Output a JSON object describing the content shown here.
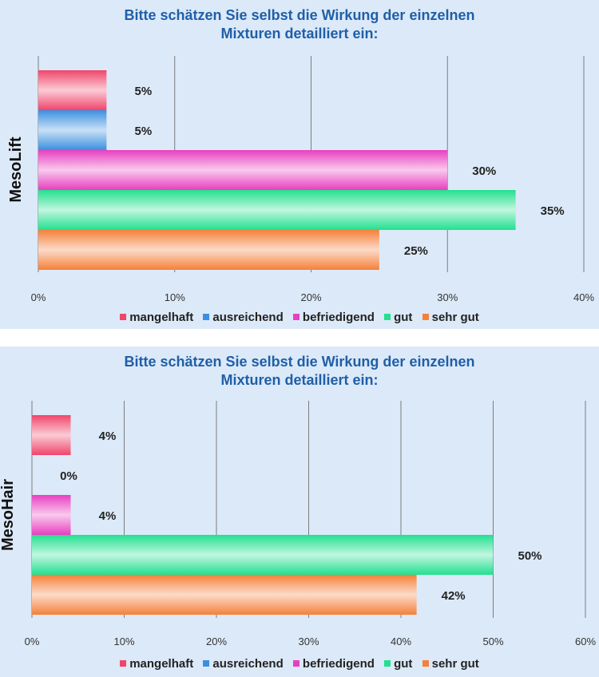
{
  "charts": [
    {
      "title_line1": "Bitte schätzen Sie selbst die Wirkung der einzelnen",
      "title_line2": "Mixturen detailliert ein:"
    },
    {
      "title_line1": "Bitte schätzen Sie selbst die Wirkung der einzelnen",
      "title_line2": "Mixturen detailliert ein:"
    }
  ],
  "legends": [
    {
      "items": [
        {
          "label": "mangelhaft",
          "color": "#f0456a"
        },
        {
          "label": "ausreichend",
          "color": "#3b8fe0"
        },
        {
          "label": "befriedigend",
          "color": "#e83fc0"
        },
        {
          "label": "gut",
          "color": "#22e08f"
        },
        {
          "label": "sehr gut",
          "color": "#f5803a"
        }
      ]
    },
    {
      "items": [
        {
          "label": "mangelhaft",
          "color": "#f0456a"
        },
        {
          "label": "ausreichend",
          "color": "#3b8fe0"
        },
        {
          "label": "befriedigend",
          "color": "#e83fc0"
        },
        {
          "label": "gut",
          "color": "#22e08f"
        },
        {
          "label": "sehr gut",
          "color": "#f5803a"
        }
      ]
    }
  ],
  "chart_data": [
    {
      "type": "bar",
      "orientation": "horizontal",
      "title": "Bitte schätzen Sie selbst die Wirkung der einzelnen Mixturen detailliert ein:",
      "category": "MesoLift",
      "xlim": [
        0,
        40
      ],
      "xticks": [
        0,
        10,
        20,
        30,
        40
      ],
      "tick_labels": [
        "0%",
        "10%",
        "20%",
        "30%",
        "40%"
      ],
      "grid": true,
      "legend_position": "bottom",
      "series": [
        {
          "name": "mangelhaft",
          "value": 5,
          "label": "5%",
          "color": "#f0456a"
        },
        {
          "name": "ausreichend",
          "value": 5,
          "label": "5%",
          "color": "#3b8fe0"
        },
        {
          "name": "befriedigend",
          "value": 30,
          "label": "30%",
          "color": "#e83fc0"
        },
        {
          "name": "gut",
          "value": 35,
          "label": "35%",
          "color": "#22e08f"
        },
        {
          "name": "sehr gut",
          "value": 25,
          "label": "25%",
          "color": "#f5803a"
        }
      ]
    },
    {
      "type": "bar",
      "orientation": "horizontal",
      "title": "Bitte schätzen Sie selbst die Wirkung der einzelnen Mixturen detailliert ein:",
      "category": "MesoHair",
      "xlim": [
        0,
        60
      ],
      "xticks": [
        0,
        10,
        20,
        30,
        40,
        50,
        60
      ],
      "tick_labels": [
        "0%",
        "10%",
        "20%",
        "30%",
        "40%",
        "50%",
        "60%"
      ],
      "grid": true,
      "legend_position": "bottom",
      "series": [
        {
          "name": "mangelhaft",
          "value": 4.2,
          "label": "4%",
          "color": "#f0456a"
        },
        {
          "name": "ausreichend",
          "value": 0,
          "label": "0%",
          "color": "#3b8fe0"
        },
        {
          "name": "befriedigend",
          "value": 4.2,
          "label": "4%",
          "color": "#e83fc0"
        },
        {
          "name": "gut",
          "value": 50,
          "label": "50%",
          "color": "#22e08f"
        },
        {
          "name": "sehr gut",
          "value": 41.7,
          "label": "42%",
          "color": "#f5803a"
        }
      ]
    }
  ]
}
